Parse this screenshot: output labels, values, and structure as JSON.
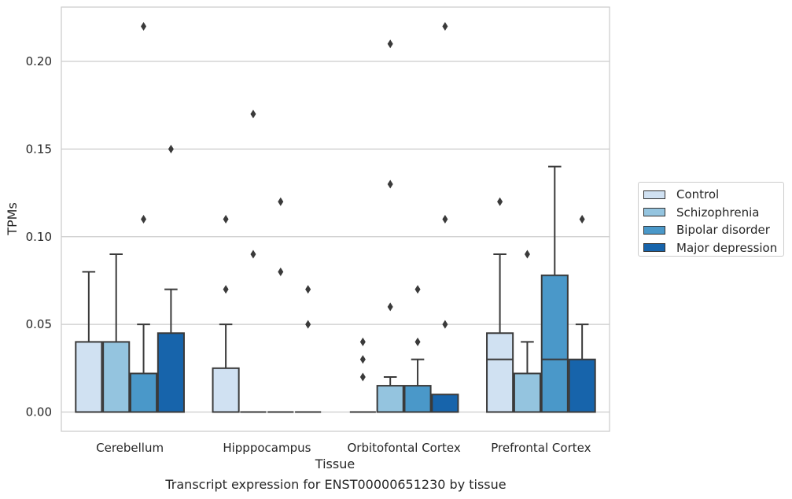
{
  "chart_data": {
    "type": "box",
    "title": "",
    "caption": "Transcript expression for ENST00000651230 by tissue",
    "xlabel": "Tissue",
    "ylabel": "TPMs",
    "ylim": [
      -0.011,
      0.231
    ],
    "yticks": [
      "0.00",
      "0.05",
      "0.10",
      "0.15",
      "0.20"
    ],
    "grid": "horizontal",
    "legend_position": "right",
    "categories": [
      "Cerebellum",
      "Hipppocampus",
      "Orbitofontal Cortex",
      "Prefrontal Cortex"
    ],
    "series": [
      {
        "name": "Control",
        "color": "#d0e1f2",
        "boxes": [
          {
            "whislo": 0,
            "q1": 0,
            "med": 0,
            "q3": 0.04,
            "whishi": 0.08,
            "fliers": []
          },
          {
            "whislo": 0,
            "q1": 0,
            "med": 0,
            "q3": 0.025,
            "whishi": 0.05,
            "fliers": [
              0.07,
              0.11
            ]
          },
          {
            "whislo": 0,
            "q1": 0,
            "med": 0,
            "q3": 0,
            "whishi": 0,
            "fliers": [
              0.02,
              0.03,
              0.04
            ]
          },
          {
            "whislo": 0,
            "q1": 0,
            "med": 0.03,
            "q3": 0.045,
            "whishi": 0.09,
            "fliers": [
              0.12
            ]
          }
        ]
      },
      {
        "name": "Schizophrenia",
        "color": "#94c4df",
        "boxes": [
          {
            "whislo": 0,
            "q1": 0,
            "med": 0,
            "q3": 0.04,
            "whishi": 0.09,
            "fliers": []
          },
          {
            "whislo": 0,
            "q1": 0,
            "med": 0,
            "q3": 0,
            "whishi": 0,
            "fliers": [
              0.09,
              0.17
            ]
          },
          {
            "whislo": 0,
            "q1": 0,
            "med": 0,
            "q3": 0.015,
            "whishi": 0.02,
            "fliers": [
              0.06,
              0.13,
              0.21
            ]
          },
          {
            "whislo": 0,
            "q1": 0,
            "med": 0,
            "q3": 0.022,
            "whishi": 0.04,
            "fliers": [
              0.09
            ]
          }
        ]
      },
      {
        "name": "Bipolar disorder",
        "color": "#4a98c9",
        "boxes": [
          {
            "whislo": 0,
            "q1": 0,
            "med": 0,
            "q3": 0.022,
            "whishi": 0.05,
            "fliers": [
              0.11,
              0.22
            ]
          },
          {
            "whislo": 0,
            "q1": 0,
            "med": 0,
            "q3": 0,
            "whishi": 0,
            "fliers": [
              0.08,
              0.12
            ]
          },
          {
            "whislo": 0,
            "q1": 0,
            "med": 0,
            "q3": 0.015,
            "whishi": 0.03,
            "fliers": [
              0.04,
              0.07
            ]
          },
          {
            "whislo": 0,
            "q1": 0,
            "med": 0.03,
            "q3": 0.078,
            "whishi": 0.14,
            "fliers": []
          }
        ]
      },
      {
        "name": "Major depression",
        "color": "#1764ab",
        "boxes": [
          {
            "whislo": 0,
            "q1": 0,
            "med": 0,
            "q3": 0.045,
            "whishi": 0.07,
            "fliers": [
              0.15
            ]
          },
          {
            "whislo": 0,
            "q1": 0,
            "med": 0,
            "q3": 0,
            "whishi": 0,
            "fliers": [
              0.05,
              0.07
            ]
          },
          {
            "whislo": 0,
            "q1": 0,
            "med": 0,
            "q3": 0.01,
            "whishi": 0.01,
            "fliers": [
              0.05,
              0.11,
              0.22
            ]
          },
          {
            "whislo": 0,
            "q1": 0,
            "med": 0,
            "q3": 0.03,
            "whishi": 0.05,
            "fliers": [
              0.11
            ]
          }
        ]
      }
    ]
  }
}
